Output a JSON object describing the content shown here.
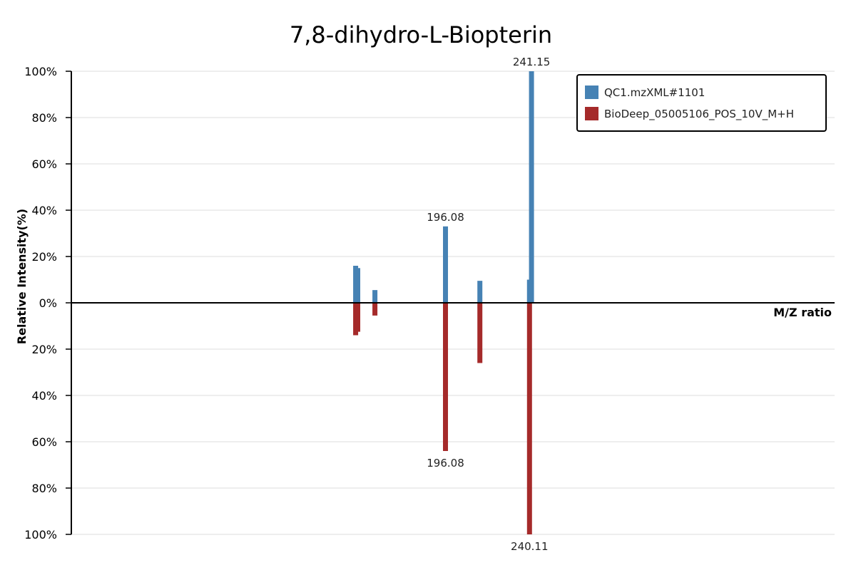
{
  "chart_data": {
    "type": "bar",
    "title": "7,8-dihydro-L-Biopterin",
    "xlabel": "M/Z ratio",
    "ylabel": "Relative Intensity(%)",
    "ylim": [
      -100,
      100
    ],
    "yticks": [
      {
        "value": 100,
        "label": "100%"
      },
      {
        "value": 80,
        "label": "80%"
      },
      {
        "value": 60,
        "label": "60%"
      },
      {
        "value": 40,
        "label": "40%"
      },
      {
        "value": 20,
        "label": "20%"
      },
      {
        "value": 0,
        "label": "0%"
      },
      {
        "value": -20,
        "label": "20%"
      },
      {
        "value": -40,
        "label": "40%"
      },
      {
        "value": -60,
        "label": "60%"
      },
      {
        "value": -80,
        "label": "80%"
      },
      {
        "value": -100,
        "label": "100%"
      }
    ],
    "grid": true,
    "legend_position": "top-right",
    "series": [
      {
        "name": "QC1.mzXML#1101",
        "color": "#4682b4",
        "direction": "up",
        "peaks": [
          {
            "mz": 149.0,
            "intensity": 16
          },
          {
            "mz": 150.1,
            "intensity": 15
          },
          {
            "mz": 159.1,
            "intensity": 5.5
          },
          {
            "mz": 196.08,
            "intensity": 33,
            "label": "196.08"
          },
          {
            "mz": 214.1,
            "intensity": 9.5
          },
          {
            "mz": 240.1,
            "intensity": 10
          },
          {
            "mz": 241.15,
            "intensity": 100,
            "label": "241.15"
          }
        ]
      },
      {
        "name": "BioDeep_05005106_POS_10V_M+H",
        "color": "#a52a2a",
        "direction": "down",
        "peaks": [
          {
            "mz": 149.0,
            "intensity": 14
          },
          {
            "mz": 150.1,
            "intensity": 12.5
          },
          {
            "mz": 159.1,
            "intensity": 5.5
          },
          {
            "mz": 196.08,
            "intensity": 64,
            "label": "196.08"
          },
          {
            "mz": 214.1,
            "intensity": 26
          },
          {
            "mz": 240.11,
            "intensity": 100,
            "label": "240.11"
          }
        ]
      }
    ]
  }
}
